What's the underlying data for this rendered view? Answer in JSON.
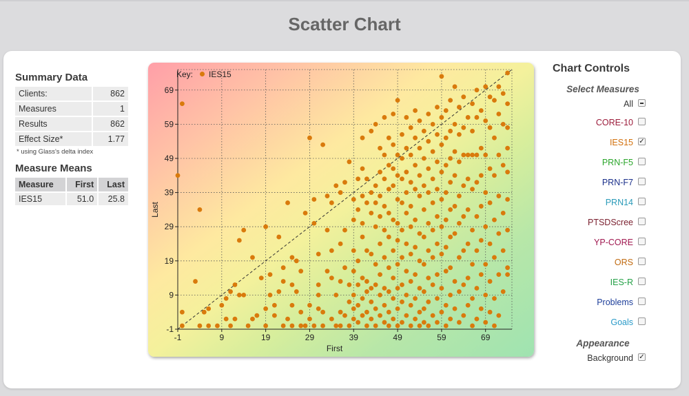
{
  "page_title": "Scatter Chart",
  "summary": {
    "heading": "Summary Data",
    "rows": [
      {
        "label": "Clients:",
        "value": "862"
      },
      {
        "label": "Measures",
        "value": "1"
      },
      {
        "label": "Results",
        "value": "862"
      },
      {
        "label": "Effect Size*",
        "value": "1.77"
      }
    ],
    "footnote": "* using Glass's delta index"
  },
  "means": {
    "heading": "Measure Means",
    "columns": [
      "Measure",
      "First",
      "Last"
    ],
    "rows": [
      {
        "measure": "IES15",
        "first": "51.0",
        "last": "25.8"
      }
    ]
  },
  "controls": {
    "title": "Chart Controls",
    "select_heading": "Select Measures",
    "measures": [
      {
        "label": "All",
        "state": "mixed",
        "color": "#333333"
      },
      {
        "label": "CORE-10",
        "state": "off",
        "color": "#9b1b3a"
      },
      {
        "label": "IES15",
        "state": "on",
        "color": "#d2700c"
      },
      {
        "label": "PRN-F5",
        "state": "off",
        "color": "#2aa52a"
      },
      {
        "label": "PRN-F7",
        "state": "off",
        "color": "#1a2f8a"
      },
      {
        "label": "PRN14",
        "state": "off",
        "color": "#2a9ab8"
      },
      {
        "label": "PTSDScree",
        "state": "off",
        "color": "#7a1f2e"
      },
      {
        "label": "YP-CORE",
        "state": "off",
        "color": "#a01850"
      },
      {
        "label": "ORS",
        "state": "off",
        "color": "#c06a10"
      },
      {
        "label": "IES-R",
        "state": "off",
        "color": "#23a046"
      },
      {
        "label": "Problems",
        "state": "off",
        "color": "#1d3e9a"
      },
      {
        "label": "Goals",
        "state": "off",
        "color": "#2a9ac8"
      }
    ],
    "appearance_heading": "Appearance",
    "background_label": "Background",
    "background_checked": "on"
  },
  "chart_data": {
    "type": "scatter",
    "key_label": "Key:",
    "series_name": "IES15",
    "series_color": "#d97a0c",
    "xlabel": "First",
    "ylabel": "Last",
    "xlim": [
      -1,
      75
    ],
    "ylim": [
      -1,
      75
    ],
    "xticks": [
      -1,
      9,
      19,
      29,
      39,
      49,
      59,
      69
    ],
    "yticks": [
      -1,
      9,
      19,
      29,
      39,
      49,
      59,
      69
    ],
    "grid": "dotted",
    "reference_line": "y = x (dashed)",
    "background": "gradient red (top-left) to green (bottom-right)",
    "points": [
      [
        -1,
        44
      ],
      [
        0,
        65
      ],
      [
        0,
        4
      ],
      [
        0,
        0
      ],
      [
        4,
        34
      ],
      [
        3,
        13
      ],
      [
        4,
        0
      ],
      [
        5,
        4
      ],
      [
        6,
        5
      ],
      [
        6,
        0
      ],
      [
        8,
        0
      ],
      [
        9,
        6
      ],
      [
        10,
        2
      ],
      [
        10,
        8
      ],
      [
        11,
        10
      ],
      [
        11,
        0
      ],
      [
        12,
        2
      ],
      [
        12,
        12
      ],
      [
        13,
        9
      ],
      [
        13,
        25
      ],
      [
        14,
        28
      ],
      [
        14,
        9
      ],
      [
        15,
        0
      ],
      [
        16,
        2
      ],
      [
        16,
        20
      ],
      [
        17,
        3
      ],
      [
        18,
        14
      ],
      [
        19,
        29
      ],
      [
        19,
        5
      ],
      [
        19,
        0
      ],
      [
        20,
        9
      ],
      [
        20,
        15
      ],
      [
        21,
        6
      ],
      [
        21,
        3
      ],
      [
        22,
        26
      ],
      [
        22,
        10
      ],
      [
        23,
        17
      ],
      [
        23,
        13
      ],
      [
        23,
        0
      ],
      [
        24,
        2
      ],
      [
        24,
        36
      ],
      [
        25,
        20
      ],
      [
        25,
        12
      ],
      [
        25,
        6
      ],
      [
        25,
        0
      ],
      [
        26,
        10
      ],
      [
        26,
        19
      ],
      [
        27,
        16
      ],
      [
        27,
        4
      ],
      [
        27,
        0
      ],
      [
        28,
        33
      ],
      [
        28,
        0
      ],
      [
        29,
        55
      ],
      [
        29,
        6
      ],
      [
        29,
        2
      ],
      [
        30,
        30
      ],
      [
        30,
        37
      ],
      [
        30,
        0
      ],
      [
        31,
        12
      ],
      [
        31,
        21
      ],
      [
        31,
        9
      ],
      [
        31,
        5
      ],
      [
        32,
        53
      ],
      [
        32,
        4
      ],
      [
        32,
        0
      ],
      [
        33,
        38
      ],
      [
        33,
        16
      ],
      [
        33,
        28
      ],
      [
        34,
        36
      ],
      [
        34,
        22
      ],
      [
        34,
        14
      ],
      [
        34,
        2
      ],
      [
        35,
        41
      ],
      [
        35,
        9
      ],
      [
        35,
        0
      ],
      [
        36,
        39
      ],
      [
        36,
        13
      ],
      [
        36,
        24
      ],
      [
        36,
        4
      ],
      [
        36,
        0
      ],
      [
        37,
        42
      ],
      [
        37,
        28
      ],
      [
        37,
        17
      ],
      [
        37,
        3
      ],
      [
        38,
        48
      ],
      [
        38,
        12
      ],
      [
        38,
        7
      ],
      [
        38,
        0
      ],
      [
        39,
        37
      ],
      [
        39,
        31
      ],
      [
        39,
        22
      ],
      [
        39,
        16
      ],
      [
        39,
        9
      ],
      [
        39,
        5
      ],
      [
        39,
        2
      ],
      [
        40,
        43
      ],
      [
        40,
        34
      ],
      [
        40,
        19
      ],
      [
        40,
        12
      ],
      [
        40,
        6
      ],
      [
        40,
        1
      ],
      [
        41,
        55
      ],
      [
        41,
        46
      ],
      [
        41,
        38
      ],
      [
        41,
        30
      ],
      [
        41,
        26
      ],
      [
        41,
        14
      ],
      [
        41,
        8
      ],
      [
        41,
        3
      ],
      [
        42,
        43
      ],
      [
        42,
        36
      ],
      [
        42,
        22
      ],
      [
        42,
        13
      ],
      [
        42,
        10
      ],
      [
        42,
        4
      ],
      [
        42,
        0
      ],
      [
        43,
        57
      ],
      [
        43,
        39
      ],
      [
        43,
        33
      ],
      [
        43,
        21
      ],
      [
        43,
        11
      ],
      [
        43,
        7
      ],
      [
        43,
        2
      ],
      [
        44,
        59
      ],
      [
        44,
        41
      ],
      [
        44,
        36
      ],
      [
        44,
        29
      ],
      [
        44,
        18
      ],
      [
        44,
        12
      ],
      [
        44,
        5
      ],
      [
        44,
        0
      ],
      [
        45,
        52
      ],
      [
        45,
        45
      ],
      [
        45,
        38
      ],
      [
        45,
        32
      ],
      [
        45,
        24
      ],
      [
        45,
        15
      ],
      [
        45,
        9
      ],
      [
        45,
        3
      ],
      [
        46,
        61
      ],
      [
        46,
        50
      ],
      [
        46,
        43
      ],
      [
        46,
        35
      ],
      [
        46,
        28
      ],
      [
        46,
        20
      ],
      [
        46,
        11
      ],
      [
        46,
        6
      ],
      [
        46,
        1
      ],
      [
        47,
        55
      ],
      [
        47,
        47
      ],
      [
        47,
        40
      ],
      [
        47,
        33
      ],
      [
        47,
        26
      ],
      [
        47,
        17
      ],
      [
        47,
        10
      ],
      [
        47,
        4
      ],
      [
        47,
        0
      ],
      [
        48,
        62
      ],
      [
        48,
        53
      ],
      [
        48,
        46
      ],
      [
        48,
        41
      ],
      [
        48,
        31
      ],
      [
        48,
        22
      ],
      [
        48,
        14
      ],
      [
        48,
        8
      ],
      [
        48,
        2
      ],
      [
        49,
        66
      ],
      [
        49,
        50
      ],
      [
        49,
        44
      ],
      [
        49,
        37
      ],
      [
        49,
        30
      ],
      [
        49,
        25
      ],
      [
        49,
        18
      ],
      [
        49,
        11
      ],
      [
        49,
        5
      ],
      [
        49,
        0
      ],
      [
        50,
        56
      ],
      [
        50,
        49
      ],
      [
        50,
        43
      ],
      [
        50,
        36
      ],
      [
        50,
        28
      ],
      [
        50,
        20
      ],
      [
        50,
        12
      ],
      [
        50,
        7
      ],
      [
        50,
        1
      ],
      [
        51,
        61
      ],
      [
        51,
        52
      ],
      [
        51,
        45
      ],
      [
        51,
        39
      ],
      [
        51,
        33
      ],
      [
        51,
        24
      ],
      [
        51,
        16
      ],
      [
        51,
        9
      ],
      [
        51,
        3
      ],
      [
        52,
        58
      ],
      [
        52,
        50
      ],
      [
        52,
        42
      ],
      [
        52,
        35
      ],
      [
        52,
        29
      ],
      [
        52,
        21
      ],
      [
        52,
        13
      ],
      [
        52,
        6
      ],
      [
        52,
        0
      ],
      [
        53,
        63
      ],
      [
        53,
        55
      ],
      [
        53,
        47
      ],
      [
        53,
        40
      ],
      [
        53,
        31
      ],
      [
        53,
        23
      ],
      [
        53,
        15
      ],
      [
        53,
        8
      ],
      [
        53,
        2
      ],
      [
        54,
        60
      ],
      [
        54,
        52
      ],
      [
        54,
        44
      ],
      [
        54,
        38
      ],
      [
        54,
        27
      ],
      [
        54,
        19
      ],
      [
        54,
        11
      ],
      [
        54,
        4
      ],
      [
        54,
        0
      ],
      [
        55,
        57
      ],
      [
        55,
        49
      ],
      [
        55,
        41
      ],
      [
        55,
        34
      ],
      [
        55,
        26
      ],
      [
        55,
        18
      ],
      [
        55,
        10
      ],
      [
        55,
        5
      ],
      [
        55,
        1
      ],
      [
        56,
        62
      ],
      [
        56,
        54
      ],
      [
        56,
        46
      ],
      [
        56,
        39
      ],
      [
        56,
        30
      ],
      [
        56,
        22
      ],
      [
        56,
        14
      ],
      [
        56,
        7
      ],
      [
        56,
        0
      ],
      [
        57,
        59
      ],
      [
        57,
        51
      ],
      [
        57,
        43
      ],
      [
        57,
        36
      ],
      [
        57,
        28
      ],
      [
        57,
        20
      ],
      [
        57,
        12
      ],
      [
        57,
        3
      ],
      [
        58,
        64
      ],
      [
        58,
        56
      ],
      [
        58,
        48
      ],
      [
        58,
        40
      ],
      [
        58,
        32
      ],
      [
        58,
        24
      ],
      [
        58,
        15
      ],
      [
        58,
        8
      ],
      [
        58,
        1
      ],
      [
        59,
        73
      ],
      [
        59,
        61
      ],
      [
        59,
        53
      ],
      [
        59,
        45
      ],
      [
        59,
        37
      ],
      [
        59,
        29
      ],
      [
        59,
        21
      ],
      [
        59,
        11
      ],
      [
        59,
        4
      ],
      [
        60,
        63
      ],
      [
        60,
        55
      ],
      [
        60,
        47
      ],
      [
        60,
        39
      ],
      [
        60,
        31
      ],
      [
        60,
        23
      ],
      [
        60,
        16
      ],
      [
        60,
        6
      ],
      [
        60,
        0
      ],
      [
        61,
        66
      ],
      [
        61,
        57
      ],
      [
        61,
        49
      ],
      [
        61,
        42
      ],
      [
        61,
        34
      ],
      [
        61,
        26
      ],
      [
        61,
        17
      ],
      [
        61,
        9
      ],
      [
        61,
        2
      ],
      [
        62,
        70
      ],
      [
        62,
        59
      ],
      [
        62,
        51
      ],
      [
        62,
        44
      ],
      [
        62,
        35
      ],
      [
        62,
        27
      ],
      [
        62,
        13
      ],
      [
        62,
        5
      ],
      [
        63,
        64
      ],
      [
        63,
        56
      ],
      [
        63,
        48
      ],
      [
        63,
        38
      ],
      [
        63,
        30
      ],
      [
        63,
        20
      ],
      [
        63,
        10
      ],
      [
        63,
        1
      ],
      [
        64,
        67
      ],
      [
        64,
        58
      ],
      [
        64,
        50
      ],
      [
        64,
        41
      ],
      [
        64,
        32
      ],
      [
        64,
        22
      ],
      [
        64,
        12
      ],
      [
        64,
        3
      ],
      [
        65,
        61
      ],
      [
        65,
        50
      ],
      [
        65,
        43
      ],
      [
        65,
        34
      ],
      [
        65,
        24
      ],
      [
        65,
        14
      ],
      [
        65,
        6
      ],
      [
        66,
        65
      ],
      [
        66,
        57
      ],
      [
        66,
        50
      ],
      [
        66,
        40
      ],
      [
        66,
        28
      ],
      [
        66,
        18
      ],
      [
        66,
        8
      ],
      [
        66,
        0
      ],
      [
        67,
        69
      ],
      [
        67,
        61
      ],
      [
        67,
        50
      ],
      [
        67,
        42
      ],
      [
        67,
        32
      ],
      [
        67,
        22
      ],
      [
        67,
        11
      ],
      [
        67,
        2
      ],
      [
        68,
        63
      ],
      [
        68,
        52
      ],
      [
        68,
        44
      ],
      [
        68,
        35
      ],
      [
        68,
        25
      ],
      [
        68,
        15
      ],
      [
        68,
        5
      ],
      [
        69,
        70
      ],
      [
        69,
        60
      ],
      [
        69,
        50
      ],
      [
        69,
        39
      ],
      [
        69,
        29
      ],
      [
        69,
        18
      ],
      [
        69,
        9
      ],
      [
        69,
        1
      ],
      [
        70,
        67
      ],
      [
        70,
        58
      ],
      [
        70,
        46
      ],
      [
        70,
        36
      ],
      [
        70,
        24
      ],
      [
        70,
        13
      ],
      [
        70,
        4
      ],
      [
        71,
        66
      ],
      [
        71,
        55
      ],
      [
        71,
        44
      ],
      [
        71,
        31
      ],
      [
        71,
        20
      ],
      [
        71,
        8
      ],
      [
        71,
        0
      ],
      [
        72,
        70
      ],
      [
        72,
        62
      ],
      [
        72,
        50
      ],
      [
        72,
        38
      ],
      [
        72,
        27
      ],
      [
        72,
        15
      ],
      [
        72,
        3
      ],
      [
        73,
        68
      ],
      [
        73,
        59
      ],
      [
        73,
        47
      ],
      [
        73,
        33
      ],
      [
        73,
        22
      ],
      [
        73,
        10
      ],
      [
        74,
        74
      ],
      [
        74,
        65
      ],
      [
        74,
        58
      ],
      [
        74,
        52
      ],
      [
        74,
        45
      ],
      [
        74,
        37
      ],
      [
        74,
        28
      ],
      [
        74,
        17
      ],
      [
        74,
        15
      ]
    ]
  }
}
